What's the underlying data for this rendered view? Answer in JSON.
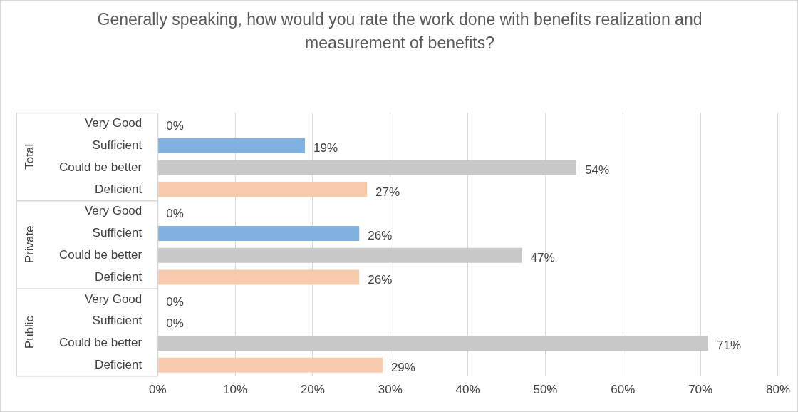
{
  "chart_data": {
    "type": "bar",
    "orientation": "horizontal",
    "title": "Generally speaking, how would you rate the work done with benefits realization and measurement of benefits?",
    "categories": [
      "Very Good",
      "Sufficient",
      "Could be better",
      "Deficient",
      "Very Good",
      "Sufficient",
      "Could be better",
      "Deficient",
      "Very Good",
      "Sufficient",
      "Could be better",
      "Deficient"
    ],
    "values": [
      0,
      19,
      54,
      27,
      0,
      26,
      47,
      26,
      0,
      0,
      71,
      29
    ],
    "colors": [
      "#5b9bd5",
      "#7fb2e0",
      "#c8c8c8",
      "#f8cbad",
      "#5b9bd5",
      "#7fb2e0",
      "#c8c8c8",
      "#f8cbad",
      "#5b9bd5",
      "#7fb2e0",
      "#c8c8c8",
      "#f8cbad"
    ],
    "value_labels": [
      "0%",
      "19%",
      "54%",
      "27%",
      "0%",
      "26%",
      "47%",
      "26%",
      "0%",
      "0%",
      "71%",
      "29%"
    ],
    "annotations": [
      "Total",
      "Private",
      "Public"
    ],
    "xlim": [
      0,
      80
    ],
    "xticks": [
      {
        "value": 0,
        "label": "0%"
      },
      {
        "value": 10,
        "label": "10%"
      },
      {
        "value": 20,
        "label": "20%"
      },
      {
        "value": 30,
        "label": "30%"
      },
      {
        "value": 40,
        "label": "40%"
      },
      {
        "value": 50,
        "label": "50%"
      },
      {
        "value": 60,
        "label": "60%"
      },
      {
        "value": 70,
        "label": "70%"
      },
      {
        "value": 80,
        "label": "80%"
      }
    ],
    "grid": "x",
    "legend": false
  }
}
